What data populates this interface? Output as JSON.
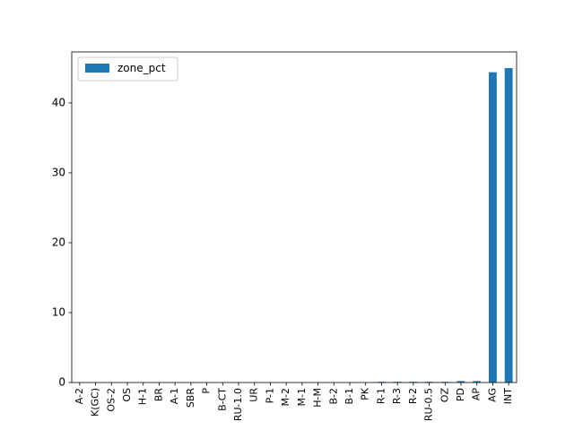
{
  "chart_data": {
    "type": "bar",
    "categories": [
      "A-2",
      "K(GC)",
      "OS-2",
      "OS",
      "H-1",
      "BR",
      "A-1",
      "SBR",
      "P",
      "B-CT",
      "RU-1.0",
      "UR",
      "P-1",
      "M-2",
      "M-1",
      "H-M",
      "B-2",
      "B-1",
      "PK",
      "R-1",
      "R-3",
      "R-2",
      "RU-0.5",
      "OZ",
      "PD",
      "AP",
      "AG",
      "INT"
    ],
    "series": [
      {
        "name": "zone_pct",
        "values": [
          0.0,
          0.0,
          0.0,
          0.0,
          0.0,
          0.0,
          0.0,
          0.0,
          0.0,
          0.0,
          0.0,
          0.0,
          0.0,
          0.0,
          0.0,
          0.0,
          0.0,
          0.0,
          0.0,
          0.1,
          0.1,
          0.1,
          0.1,
          0.1,
          0.2,
          0.2,
          44.4,
          45.0
        ]
      }
    ],
    "title": "",
    "xlabel": "",
    "ylabel": "",
    "ylim": [
      0,
      47.3
    ],
    "yticks": [
      0,
      10,
      20,
      30,
      40
    ],
    "grid": false,
    "legend_position": "top-left",
    "colors": {
      "bar": "#1f77b4",
      "axes": "#000000",
      "background": "#ffffff"
    }
  }
}
